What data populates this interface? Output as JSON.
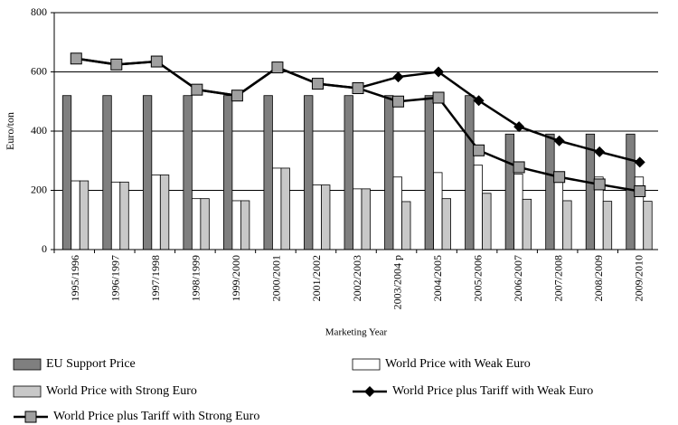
{
  "chart_data": {
    "type": "bar",
    "x_label": "Marketing Year",
    "y_label": "Euro/ton",
    "categories": [
      "1995/1996",
      "1996/1997",
      "1997/1998",
      "1998/1999",
      "1999/2000",
      "2000/2001",
      "2001/2002",
      "2002/2003",
      "2003/2004 p",
      "2004/2005",
      "2005/2006",
      "2006/2007",
      "2007/2008",
      "2008/2009",
      "2009/2010"
    ],
    "ylim": [
      0,
      800
    ],
    "yticks": [
      0,
      200,
      400,
      600,
      800
    ],
    "series": [
      {
        "name": "EU Support Price",
        "type": "bar",
        "color": "#7f7f7f",
        "values": [
          520,
          520,
          520,
          520,
          520,
          520,
          520,
          520,
          520,
          520,
          520,
          390,
          390,
          390,
          390
        ]
      },
      {
        "name": "World Price with Weak Euro",
        "type": "bar",
        "color": "#ffffff",
        "values": [
          232,
          228,
          252,
          172,
          165,
          275,
          218,
          205,
          245,
          260,
          285,
          255,
          230,
          245,
          245
        ]
      },
      {
        "name": "World Price with Strong Euro",
        "type": "bar",
        "color": "#c8c8c8",
        "values": [
          232,
          228,
          252,
          172,
          165,
          275,
          218,
          205,
          162,
          172,
          190,
          170,
          165,
          163,
          163
        ]
      },
      {
        "name": "World Price plus Tariff with Weak Euro",
        "type": "line",
        "color": "#000000",
        "marker": "diamond",
        "values": [
          645,
          625,
          635,
          540,
          520,
          615,
          560,
          545,
          583,
          600,
          503,
          415,
          367,
          330,
          295
        ]
      },
      {
        "name": "World Price plus Tariff with Strong Euro",
        "type": "line",
        "color": "#000000",
        "marker_color": "#a0a0a0",
        "marker": "square",
        "values": [
          645,
          625,
          635,
          540,
          520,
          615,
          560,
          545,
          500,
          513,
          335,
          278,
          245,
          220,
          197
        ]
      }
    ]
  }
}
